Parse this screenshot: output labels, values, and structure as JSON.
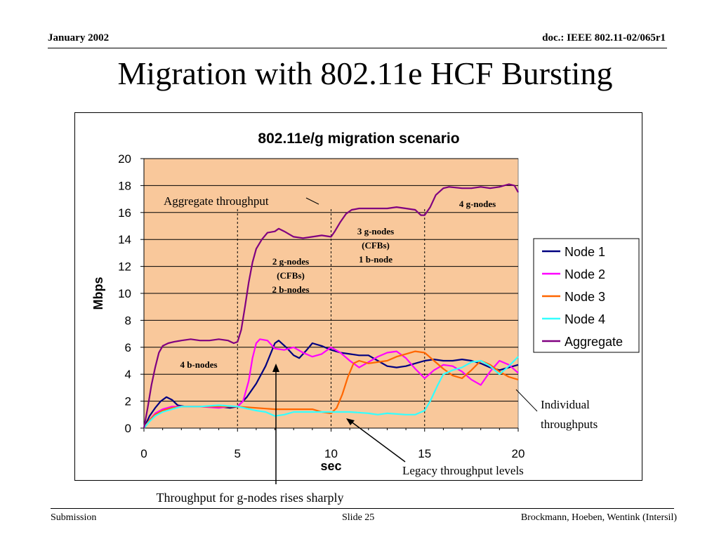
{
  "header": {
    "date": "January 2002",
    "doc": "doc.: IEEE 802.11-02/065r1"
  },
  "slide": {
    "title": "Migration with 802.11e HCF Bursting"
  },
  "footer": {
    "left": "Submission",
    "center": "Slide 25",
    "right": "Brockmann, Hoeben, Wentink (Intersil)"
  },
  "colors": {
    "plot_bg": "#F9C89B",
    "node1": "#000080",
    "node2": "#FF00FF",
    "node3": "#FF6600",
    "node4": "#33FFFF",
    "aggregate": "#800080",
    "grid": "#000000"
  },
  "chart_data": {
    "type": "line",
    "title": "802.11e/g migration scenario",
    "xlabel": "sec",
    "ylabel": "Mbps",
    "xlim": [
      0,
      20
    ],
    "ylim": [
      0,
      20
    ],
    "xticks": [
      0,
      5,
      10,
      15,
      20
    ],
    "yticks": [
      0,
      2,
      4,
      6,
      8,
      10,
      12,
      14,
      16,
      18,
      20
    ],
    "grid": "horizontal",
    "legend_position": "right",
    "series": [
      {
        "name": "Node 1",
        "color": "#000080",
        "points": [
          [
            0,
            0
          ],
          [
            0.3,
            0.9
          ],
          [
            0.6,
            1.5
          ],
          [
            0.9,
            2
          ],
          [
            1.2,
            2.3
          ],
          [
            1.5,
            2.1
          ],
          [
            1.8,
            1.7
          ],
          [
            2.2,
            1.6
          ],
          [
            3,
            1.6
          ],
          [
            4,
            1.6
          ],
          [
            4.6,
            1.5
          ],
          [
            5,
            1.6
          ],
          [
            5.5,
            2.3
          ],
          [
            6,
            3.3
          ],
          [
            6.5,
            4.6
          ],
          [
            7,
            6.3
          ],
          [
            7.2,
            6.5
          ],
          [
            7.6,
            6
          ],
          [
            8,
            5.4
          ],
          [
            8.3,
            5.2
          ],
          [
            8.7,
            5.8
          ],
          [
            9,
            6.3
          ],
          [
            9.5,
            6.1
          ],
          [
            10,
            5.8
          ],
          [
            10.5,
            5.6
          ],
          [
            11,
            5.5
          ],
          [
            11.5,
            5.4
          ],
          [
            12,
            5.4
          ],
          [
            12.5,
            5
          ],
          [
            13,
            4.6
          ],
          [
            13.5,
            4.5
          ],
          [
            14,
            4.6
          ],
          [
            14.5,
            4.8
          ],
          [
            15,
            5
          ],
          [
            15.5,
            5.1
          ],
          [
            16,
            5
          ],
          [
            16.5,
            5
          ],
          [
            17,
            5.1
          ],
          [
            17.5,
            5
          ],
          [
            18,
            4.8
          ],
          [
            18.5,
            4.5
          ],
          [
            19,
            4.3
          ],
          [
            19.5,
            4.5
          ],
          [
            20,
            4.7
          ]
        ]
      },
      {
        "name": "Node 2",
        "color": "#FF00FF",
        "points": [
          [
            0,
            0
          ],
          [
            0.3,
            0.6
          ],
          [
            0.6,
            1.1
          ],
          [
            1,
            1.4
          ],
          [
            1.5,
            1.6
          ],
          [
            2,
            1.6
          ],
          [
            3,
            1.6
          ],
          [
            4,
            1.5
          ],
          [
            4.5,
            1.6
          ],
          [
            5,
            1.6
          ],
          [
            5.3,
            2
          ],
          [
            5.6,
            3.5
          ],
          [
            5.8,
            5.2
          ],
          [
            6,
            6.3
          ],
          [
            6.2,
            6.6
          ],
          [
            6.6,
            6.5
          ],
          [
            7,
            5.9
          ],
          [
            7.5,
            5.8
          ],
          [
            8,
            6
          ],
          [
            8.5,
            5.6
          ],
          [
            9,
            5.3
          ],
          [
            9.5,
            5.5
          ],
          [
            10,
            6
          ],
          [
            10.5,
            5.6
          ],
          [
            11,
            5
          ],
          [
            11.5,
            4.5
          ],
          [
            12,
            4.9
          ],
          [
            12.5,
            5.3
          ],
          [
            13,
            5.6
          ],
          [
            13.5,
            5.7
          ],
          [
            14,
            5.2
          ],
          [
            14.5,
            4.4
          ],
          [
            15,
            3.7
          ],
          [
            15.5,
            4.3
          ],
          [
            16,
            4.7
          ],
          [
            16.5,
            4.6
          ],
          [
            17,
            4.2
          ],
          [
            17.5,
            3.6
          ],
          [
            18,
            3.2
          ],
          [
            18.5,
            4.2
          ],
          [
            19,
            5
          ],
          [
            19.5,
            4.7
          ],
          [
            20,
            4.1
          ]
        ]
      },
      {
        "name": "Node 3",
        "color": "#FF6600",
        "points": [
          [
            0,
            0
          ],
          [
            0.3,
            0.6
          ],
          [
            0.6,
            1
          ],
          [
            1,
            1.3
          ],
          [
            1.5,
            1.5
          ],
          [
            2,
            1.6
          ],
          [
            3,
            1.6
          ],
          [
            4,
            1.6
          ],
          [
            5,
            1.6
          ],
          [
            6,
            1.5
          ],
          [
            7,
            1.4
          ],
          [
            8,
            1.4
          ],
          [
            9,
            1.4
          ],
          [
            9.5,
            1.2
          ],
          [
            10,
            1.1
          ],
          [
            10.3,
            1.5
          ],
          [
            10.6,
            2.5
          ],
          [
            10.9,
            3.8
          ],
          [
            11.2,
            4.8
          ],
          [
            11.5,
            5
          ],
          [
            12,
            4.8
          ],
          [
            12.5,
            4.9
          ],
          [
            13,
            5
          ],
          [
            13.5,
            5.3
          ],
          [
            14,
            5.5
          ],
          [
            14.5,
            5.7
          ],
          [
            15,
            5.6
          ],
          [
            15.5,
            5
          ],
          [
            16,
            4.4
          ],
          [
            16.5,
            3.9
          ],
          [
            17,
            3.7
          ],
          [
            17.5,
            4.3
          ],
          [
            18,
            5
          ],
          [
            18.5,
            4.7
          ],
          [
            19,
            4.2
          ],
          [
            19.5,
            3.8
          ],
          [
            20,
            3.6
          ]
        ]
      },
      {
        "name": "Node 4",
        "color": "#33FFFF",
        "points": [
          [
            0,
            0
          ],
          [
            0.3,
            0.5
          ],
          [
            0.6,
            0.9
          ],
          [
            1,
            1.2
          ],
          [
            1.5,
            1.4
          ],
          [
            2,
            1.6
          ],
          [
            3,
            1.6
          ],
          [
            4,
            1.7
          ],
          [
            5,
            1.6
          ],
          [
            6,
            1.3
          ],
          [
            6.5,
            1.2
          ],
          [
            7,
            0.9
          ],
          [
            7.5,
            1
          ],
          [
            8,
            1.2
          ],
          [
            8.5,
            1.2
          ],
          [
            9,
            1.2
          ],
          [
            10,
            1.2
          ],
          [
            11,
            1.2
          ],
          [
            12,
            1.1
          ],
          [
            12.5,
            1
          ],
          [
            13,
            1.1
          ],
          [
            14,
            1
          ],
          [
            14.5,
            1
          ],
          [
            15,
            1.3
          ],
          [
            15.3,
            2
          ],
          [
            15.7,
            3.2
          ],
          [
            16,
            4
          ],
          [
            16.5,
            4.3
          ],
          [
            17,
            4.5
          ],
          [
            17.5,
            4.9
          ],
          [
            18,
            5
          ],
          [
            18.5,
            4.6
          ],
          [
            19,
            4
          ],
          [
            19.5,
            4.6
          ],
          [
            20,
            5.3
          ]
        ]
      },
      {
        "name": "Aggregate",
        "color": "#800080",
        "points": [
          [
            0,
            0
          ],
          [
            0.2,
            1.5
          ],
          [
            0.4,
            3.2
          ],
          [
            0.6,
            4.5
          ],
          [
            0.8,
            5.6
          ],
          [
            1,
            6.1
          ],
          [
            1.3,
            6.3
          ],
          [
            1.6,
            6.4
          ],
          [
            2,
            6.5
          ],
          [
            2.5,
            6.6
          ],
          [
            3,
            6.5
          ],
          [
            3.5,
            6.5
          ],
          [
            4,
            6.6
          ],
          [
            4.5,
            6.5
          ],
          [
            4.8,
            6.3
          ],
          [
            5,
            6.4
          ],
          [
            5.2,
            7.3
          ],
          [
            5.4,
            9
          ],
          [
            5.6,
            10.8
          ],
          [
            5.8,
            12.3
          ],
          [
            6,
            13.3
          ],
          [
            6.3,
            14
          ],
          [
            6.6,
            14.5
          ],
          [
            7,
            14.6
          ],
          [
            7.2,
            14.8
          ],
          [
            7.5,
            14.6
          ],
          [
            8,
            14.2
          ],
          [
            8.5,
            14.1
          ],
          [
            9,
            14.2
          ],
          [
            9.5,
            14.3
          ],
          [
            10,
            14.2
          ],
          [
            10.2,
            14.6
          ],
          [
            10.5,
            15.3
          ],
          [
            10.8,
            15.9
          ],
          [
            11.1,
            16.2
          ],
          [
            11.5,
            16.3
          ],
          [
            12,
            16.3
          ],
          [
            12.5,
            16.3
          ],
          [
            13,
            16.3
          ],
          [
            13.5,
            16.4
          ],
          [
            14,
            16.3
          ],
          [
            14.5,
            16.2
          ],
          [
            14.8,
            15.8
          ],
          [
            15,
            15.8
          ],
          [
            15.3,
            16.4
          ],
          [
            15.6,
            17.3
          ],
          [
            16,
            17.8
          ],
          [
            16.3,
            17.9
          ],
          [
            17,
            17.8
          ],
          [
            17.5,
            17.8
          ],
          [
            18,
            17.9
          ],
          [
            18.5,
            17.8
          ],
          [
            19,
            17.9
          ],
          [
            19.5,
            18.1
          ],
          [
            19.8,
            18
          ],
          [
            20,
            17.5
          ]
        ]
      }
    ],
    "vlines": [
      5,
      10,
      15
    ],
    "annotations": {
      "aggregate_label": "Aggregate throughput",
      "phase1": "4 b-nodes",
      "phase2": [
        "2 g-nodes",
        "(CFBs)",
        "2 b-nodes"
      ],
      "phase3": [
        "3 g-nodes",
        "(CFBs)",
        "1 b-node"
      ],
      "phase4": "4 g-nodes",
      "individual": [
        "Individual",
        "throughputs"
      ],
      "legacy": "Legacy throughput levels",
      "rises": "Throughput for g-nodes rises sharply"
    }
  }
}
